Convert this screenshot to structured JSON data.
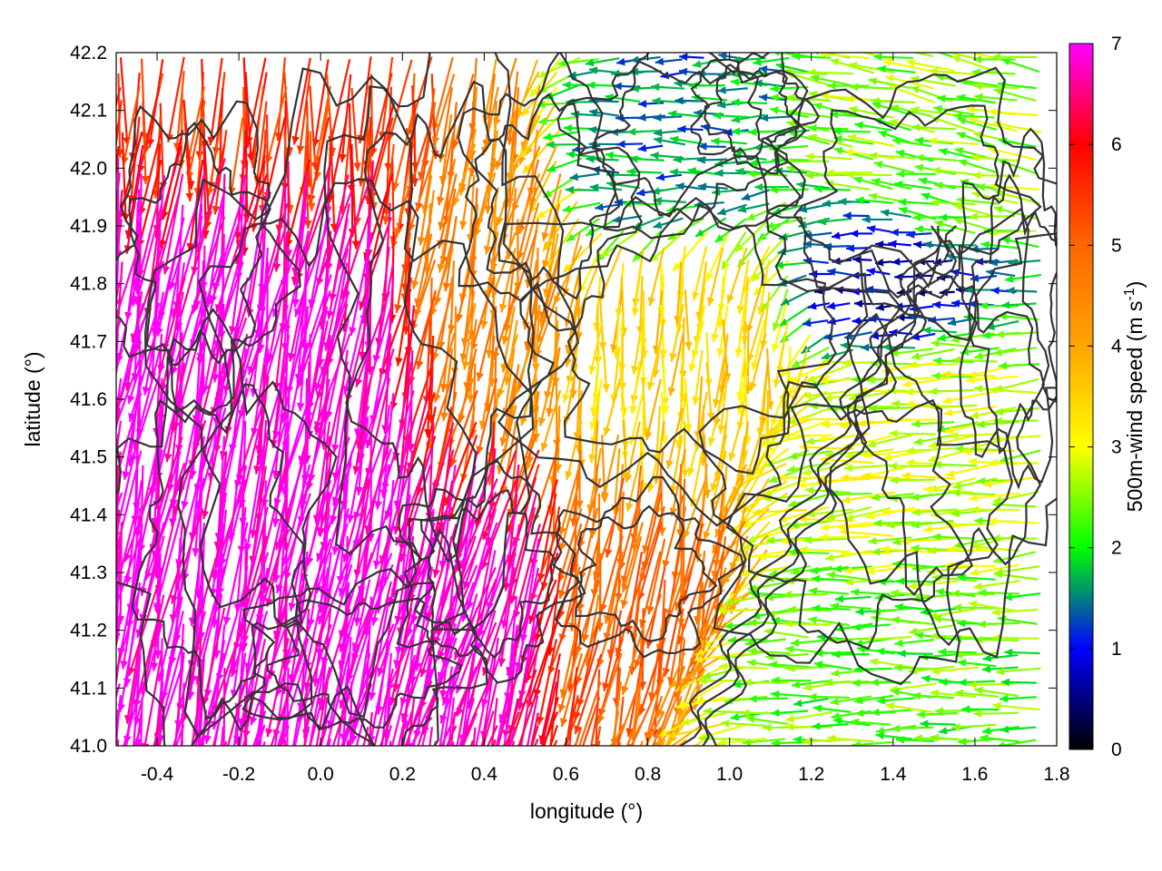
{
  "chart_data": {
    "type": "vector-field",
    "title": "",
    "xlabel": "longitude (°)",
    "ylabel": "latitude (°)",
    "colorbar_label": "500m-wind speed (m s-1)",
    "colorbar_label_parts": {
      "main": "500m-wind speed (m s",
      "sup": "-1",
      "close": ")"
    },
    "xlim": [
      -0.5,
      1.8
    ],
    "ylim": [
      41.0,
      42.2
    ],
    "xticks": [
      "-0.4",
      "-0.2",
      "0.0",
      "0.2",
      "0.4",
      "0.6",
      "0.8",
      "1.0",
      "1.2",
      "1.4",
      "1.6",
      "1.8"
    ],
    "xtick_values": [
      -0.4,
      -0.2,
      0.0,
      0.2,
      0.4,
      0.6,
      0.8,
      1.0,
      1.2,
      1.4,
      1.6,
      1.8
    ],
    "yticks": [
      "41.0",
      "41.1",
      "41.2",
      "41.3",
      "41.4",
      "41.5",
      "41.6",
      "41.7",
      "41.8",
      "41.9",
      "42.0",
      "42.1",
      "42.2"
    ],
    "ytick_values": [
      41.0,
      41.1,
      41.2,
      41.3,
      41.4,
      41.5,
      41.6,
      41.7,
      41.8,
      41.9,
      42.0,
      42.1,
      42.2
    ],
    "colorbar_range": [
      0,
      7
    ],
    "colorbar_ticks": [
      "0",
      "1",
      "2",
      "3",
      "4",
      "5",
      "6",
      "7"
    ],
    "colorbar_tick_values": [
      0,
      1,
      2,
      3,
      4,
      5,
      6,
      7
    ],
    "colormap": [
      {
        "value": 0,
        "color": "#000000"
      },
      {
        "value": 1,
        "color": "#0000ff"
      },
      {
        "value": 2,
        "color": "#00ff00"
      },
      {
        "value": 3,
        "color": "#ffff00"
      },
      {
        "value": 4,
        "color": "#ffa500"
      },
      {
        "value": 5,
        "color": "#ff6600"
      },
      {
        "value": 6,
        "color": "#ff0000"
      },
      {
        "value": 7,
        "color": "#ff00ff"
      }
    ],
    "contour_color": "#333333",
    "grid": false,
    "regions": [
      {
        "lon": [
          -0.5,
          0.2
        ],
        "lat": [
          41.0,
          42.05
        ],
        "speed": 7.0,
        "direction_deg": 260
      },
      {
        "lon": [
          0.2,
          0.55
        ],
        "lat": [
          41.1,
          41.5
        ],
        "speed": 7.0,
        "direction_deg": 255
      },
      {
        "lon": [
          -0.5,
          0.3
        ],
        "lat": [
          42.05,
          42.2
        ],
        "speed": 5.5,
        "direction_deg": 265
      },
      {
        "lon": [
          0.3,
          0.6
        ],
        "lat": [
          41.6,
          42.2
        ],
        "speed": 4.5,
        "direction_deg": 260
      },
      {
        "lon": [
          0.6,
          1.2
        ],
        "lat": [
          41.5,
          41.9
        ],
        "speed": 3.5,
        "direction_deg": 265
      },
      {
        "lon": [
          0.6,
          1.0
        ],
        "lat": [
          41.1,
          41.5
        ],
        "speed": 5.0,
        "direction_deg": 260
      },
      {
        "lon": [
          0.6,
          1.1
        ],
        "lat": [
          41.9,
          42.2
        ],
        "speed": 1.5,
        "direction_deg": 180
      },
      {
        "lon": [
          1.2,
          1.6
        ],
        "lat": [
          41.7,
          41.9
        ],
        "speed": 0.8,
        "direction_deg": 180
      },
      {
        "lon": [
          1.0,
          1.8
        ],
        "lat": [
          41.0,
          41.3
        ],
        "speed": 2.3,
        "direction_deg": 180
      },
      {
        "lon": [
          1.2,
          1.8
        ],
        "lat": [
          41.3,
          41.7
        ],
        "speed": 2.8,
        "direction_deg": 185
      },
      {
        "lon": [
          1.3,
          1.8
        ],
        "lat": [
          41.9,
          42.2
        ],
        "speed": 2.5,
        "direction_deg": 170
      }
    ]
  }
}
